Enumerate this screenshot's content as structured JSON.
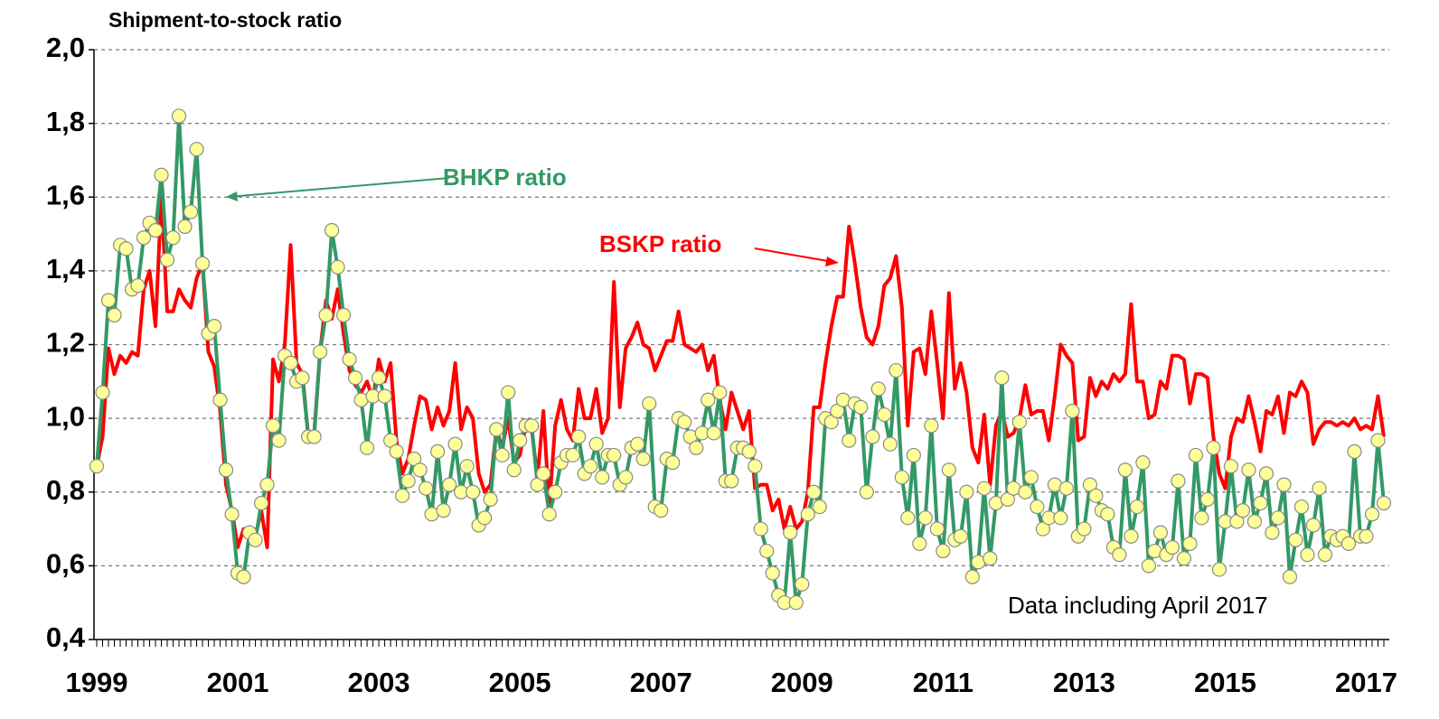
{
  "chart_data": {
    "type": "line",
    "title": "Shipment-to-stock ratio",
    "categories": [
      "1999",
      null,
      null,
      null,
      null,
      null,
      null,
      null,
      null,
      null,
      null,
      null,
      null,
      null,
      null,
      null,
      null,
      null,
      null,
      null,
      null,
      null,
      null,
      null,
      "2001",
      null,
      null,
      null,
      null,
      null,
      null,
      null,
      null,
      null,
      null,
      null,
      null,
      null,
      null,
      null,
      null,
      null,
      null,
      null,
      null,
      null,
      null,
      null,
      "2003",
      null,
      null,
      null,
      null,
      null,
      null,
      null,
      null,
      null,
      null,
      null,
      null,
      null,
      null,
      null,
      null,
      null,
      null,
      null,
      null,
      null,
      null,
      null,
      "2005",
      null,
      null,
      null,
      null,
      null,
      null,
      null,
      null,
      null,
      null,
      null,
      null,
      null,
      null,
      null,
      null,
      null,
      null,
      null,
      null,
      null,
      null,
      null,
      "2007",
      null,
      null,
      null,
      null,
      null,
      null,
      null,
      null,
      null,
      null,
      null,
      null,
      null,
      null,
      null,
      null,
      null,
      null,
      null,
      null,
      null,
      null,
      null,
      "2009",
      null,
      null,
      null,
      null,
      null,
      null,
      null,
      null,
      null,
      null,
      null,
      null,
      null,
      null,
      null,
      null,
      null,
      null,
      null,
      null,
      null,
      null,
      null,
      "2011",
      null,
      null,
      null,
      null,
      null,
      null,
      null,
      null,
      null,
      null,
      null,
      null,
      null,
      null,
      null,
      null,
      null,
      null,
      null,
      null,
      null,
      null,
      null,
      "2013",
      null,
      null,
      null,
      null,
      null,
      null,
      null,
      null,
      null,
      null,
      null,
      null,
      null,
      null,
      null,
      null,
      null,
      null,
      null,
      null,
      null,
      null,
      null,
      "2015",
      null,
      null,
      null,
      null,
      null,
      null,
      null,
      null,
      null,
      null,
      null,
      null,
      null,
      null,
      null,
      null,
      null,
      null,
      null,
      null,
      null,
      null,
      null,
      "2017",
      null,
      null,
      null
    ],
    "series": [
      {
        "name": "BSKP ratio",
        "color": "#ff0000",
        "markers": false,
        "values": [
          0.87,
          0.95,
          1.19,
          1.12,
          1.17,
          1.15,
          1.18,
          1.17,
          1.35,
          1.4,
          1.25,
          1.6,
          1.29,
          1.29,
          1.35,
          1.32,
          1.3,
          1.38,
          1.42,
          1.18,
          1.14,
          1.02,
          0.82,
          0.75,
          0.65,
          0.7,
          0.7,
          0.68,
          0.75,
          0.65,
          1.16,
          1.1,
          1.2,
          1.47,
          1.15,
          1.12,
          0.95,
          0.96,
          1.18,
          1.32,
          1.27,
          1.35,
          1.23,
          1.13,
          1.09,
          1.07,
          1.1,
          1.05,
          1.16,
          1.1,
          1.15,
          0.94,
          0.85,
          0.89,
          0.98,
          1.06,
          1.05,
          0.97,
          1.03,
          0.98,
          1.02,
          1.15,
          0.97,
          1.03,
          1.0,
          0.85,
          0.8,
          0.82,
          0.97,
          0.92,
          1.0,
          0.88,
          0.9,
          0.98,
          0.97,
          0.84,
          1.02,
          0.76,
          0.98,
          1.05,
          0.97,
          0.94,
          1.08,
          1.0,
          1.0,
          1.08,
          0.96,
          1.0,
          1.37,
          1.03,
          1.19,
          1.22,
          1.26,
          1.2,
          1.19,
          1.13,
          1.17,
          1.21,
          1.21,
          1.29,
          1.2,
          1.19,
          1.18,
          1.2,
          1.13,
          1.17,
          1.05,
          0.97,
          1.07,
          1.02,
          0.97,
          1.02,
          0.81,
          0.82,
          0.82,
          0.75,
          0.78,
          0.7,
          0.76,
          0.7,
          0.72,
          0.8,
          1.03,
          1.03,
          1.15,
          1.25,
          1.33,
          1.33,
          1.52,
          1.42,
          1.3,
          1.22,
          1.2,
          1.25,
          1.36,
          1.38,
          1.44,
          1.3,
          0.98,
          1.18,
          1.19,
          1.12,
          1.29,
          1.15,
          1.0,
          1.34,
          1.08,
          1.15,
          1.07,
          0.92,
          0.88,
          1.01,
          0.82,
          0.98,
          1.02,
          0.95,
          0.96,
          1.0,
          1.09,
          1.01,
          1.02,
          1.02,
          0.94,
          1.06,
          1.2,
          1.17,
          1.15,
          0.94,
          0.95,
          1.11,
          1.06,
          1.1,
          1.08,
          1.12,
          1.1,
          1.12,
          1.31,
          1.1,
          1.1,
          1.0,
          1.01,
          1.1,
          1.08,
          1.17,
          1.17,
          1.16,
          1.04,
          1.12,
          1.12,
          1.11,
          0.95,
          0.85,
          0.81,
          0.95,
          1.0,
          0.99,
          1.06,
          0.99,
          0.91,
          1.02,
          1.01,
          1.06,
          0.96,
          1.07,
          1.06,
          1.1,
          1.07,
          0.93,
          0.97,
          0.99,
          0.99,
          0.98,
          0.99,
          0.98,
          1.0,
          0.97,
          0.98,
          0.97,
          1.06,
          0.95
        ]
      },
      {
        "name": "BHKP ratio",
        "color": "#339966",
        "markers": true,
        "marker_color": "#ffff99",
        "values": [
          0.87,
          1.07,
          1.32,
          1.28,
          1.47,
          1.46,
          1.35,
          1.36,
          1.49,
          1.53,
          1.51,
          1.66,
          1.43,
          1.49,
          1.82,
          1.52,
          1.56,
          1.73,
          1.42,
          1.23,
          1.25,
          1.05,
          0.86,
          0.74,
          0.58,
          0.57,
          0.69,
          0.67,
          0.77,
          0.82,
          0.98,
          0.94,
          1.17,
          1.15,
          1.1,
          1.11,
          0.95,
          0.95,
          1.18,
          1.28,
          1.51,
          1.41,
          1.28,
          1.16,
          1.11,
          1.05,
          0.92,
          1.06,
          1.11,
          1.06,
          0.94,
          0.91,
          0.79,
          0.83,
          0.89,
          0.86,
          0.81,
          0.74,
          0.91,
          0.75,
          0.82,
          0.93,
          0.8,
          0.87,
          0.8,
          0.71,
          0.73,
          0.78,
          0.97,
          0.9,
          1.07,
          0.86,
          0.94,
          0.98,
          0.98,
          0.82,
          0.85,
          0.74,
          0.8,
          0.88,
          0.9,
          0.9,
          0.95,
          0.85,
          0.87,
          0.93,
          0.84,
          0.9,
          0.9,
          0.82,
          0.84,
          0.92,
          0.93,
          0.89,
          1.04,
          0.76,
          0.75,
          0.89,
          0.88,
          1.0,
          0.99,
          0.95,
          0.92,
          0.96,
          1.05,
          0.96,
          1.07,
          0.83,
          0.83,
          0.92,
          0.92,
          0.91,
          0.87,
          0.7,
          0.64,
          0.58,
          0.52,
          0.5,
          0.69,
          0.5,
          0.55,
          0.74,
          0.8,
          0.76,
          1.0,
          0.99,
          1.02,
          1.05,
          0.94,
          1.04,
          1.03,
          0.8,
          0.95,
          1.08,
          1.01,
          0.93,
          1.13,
          0.84,
          0.73,
          0.9,
          0.66,
          0.73,
          0.98,
          0.7,
          0.64,
          0.86,
          0.67,
          0.68,
          0.8,
          0.57,
          0.61,
          0.81,
          0.62,
          0.77,
          1.11,
          0.78,
          0.81,
          0.99,
          0.8,
          0.84,
          0.76,
          0.7,
          0.73,
          0.82,
          0.73,
          0.81,
          1.02,
          0.68,
          0.7,
          0.82,
          0.79,
          0.75,
          0.74,
          0.65,
          0.63,
          0.86,
          0.68,
          0.76,
          0.88,
          0.6,
          0.64,
          0.69,
          0.63,
          0.65,
          0.83,
          0.62,
          0.66,
          0.9,
          0.73,
          0.78,
          0.92,
          0.59,
          0.72,
          0.87,
          0.72,
          0.75,
          0.86,
          0.72,
          0.77,
          0.85,
          0.69,
          0.73,
          0.82,
          0.57,
          0.67,
          0.76,
          0.63,
          0.71,
          0.81,
          0.63,
          0.68,
          0.67,
          0.68,
          0.66,
          0.91,
          0.68,
          0.68,
          0.74,
          0.94,
          0.77
        ]
      }
    ],
    "ylim": [
      0.4,
      2.0
    ],
    "yticks": [
      {
        "value": 0.4,
        "label": "0,4"
      },
      {
        "value": 0.6,
        "label": "0,6"
      },
      {
        "value": 0.8,
        "label": "0,8"
      },
      {
        "value": 1.0,
        "label": "1,0"
      },
      {
        "value": 1.2,
        "label": "1,2"
      },
      {
        "value": 1.4,
        "label": "1,4"
      },
      {
        "value": 1.6,
        "label": "1,6"
      },
      {
        "value": 1.8,
        "label": "1,8"
      },
      {
        "value": 2.0,
        "label": "2,0"
      }
    ],
    "grid": true,
    "annotations": [
      "Data including April 2017"
    ]
  }
}
